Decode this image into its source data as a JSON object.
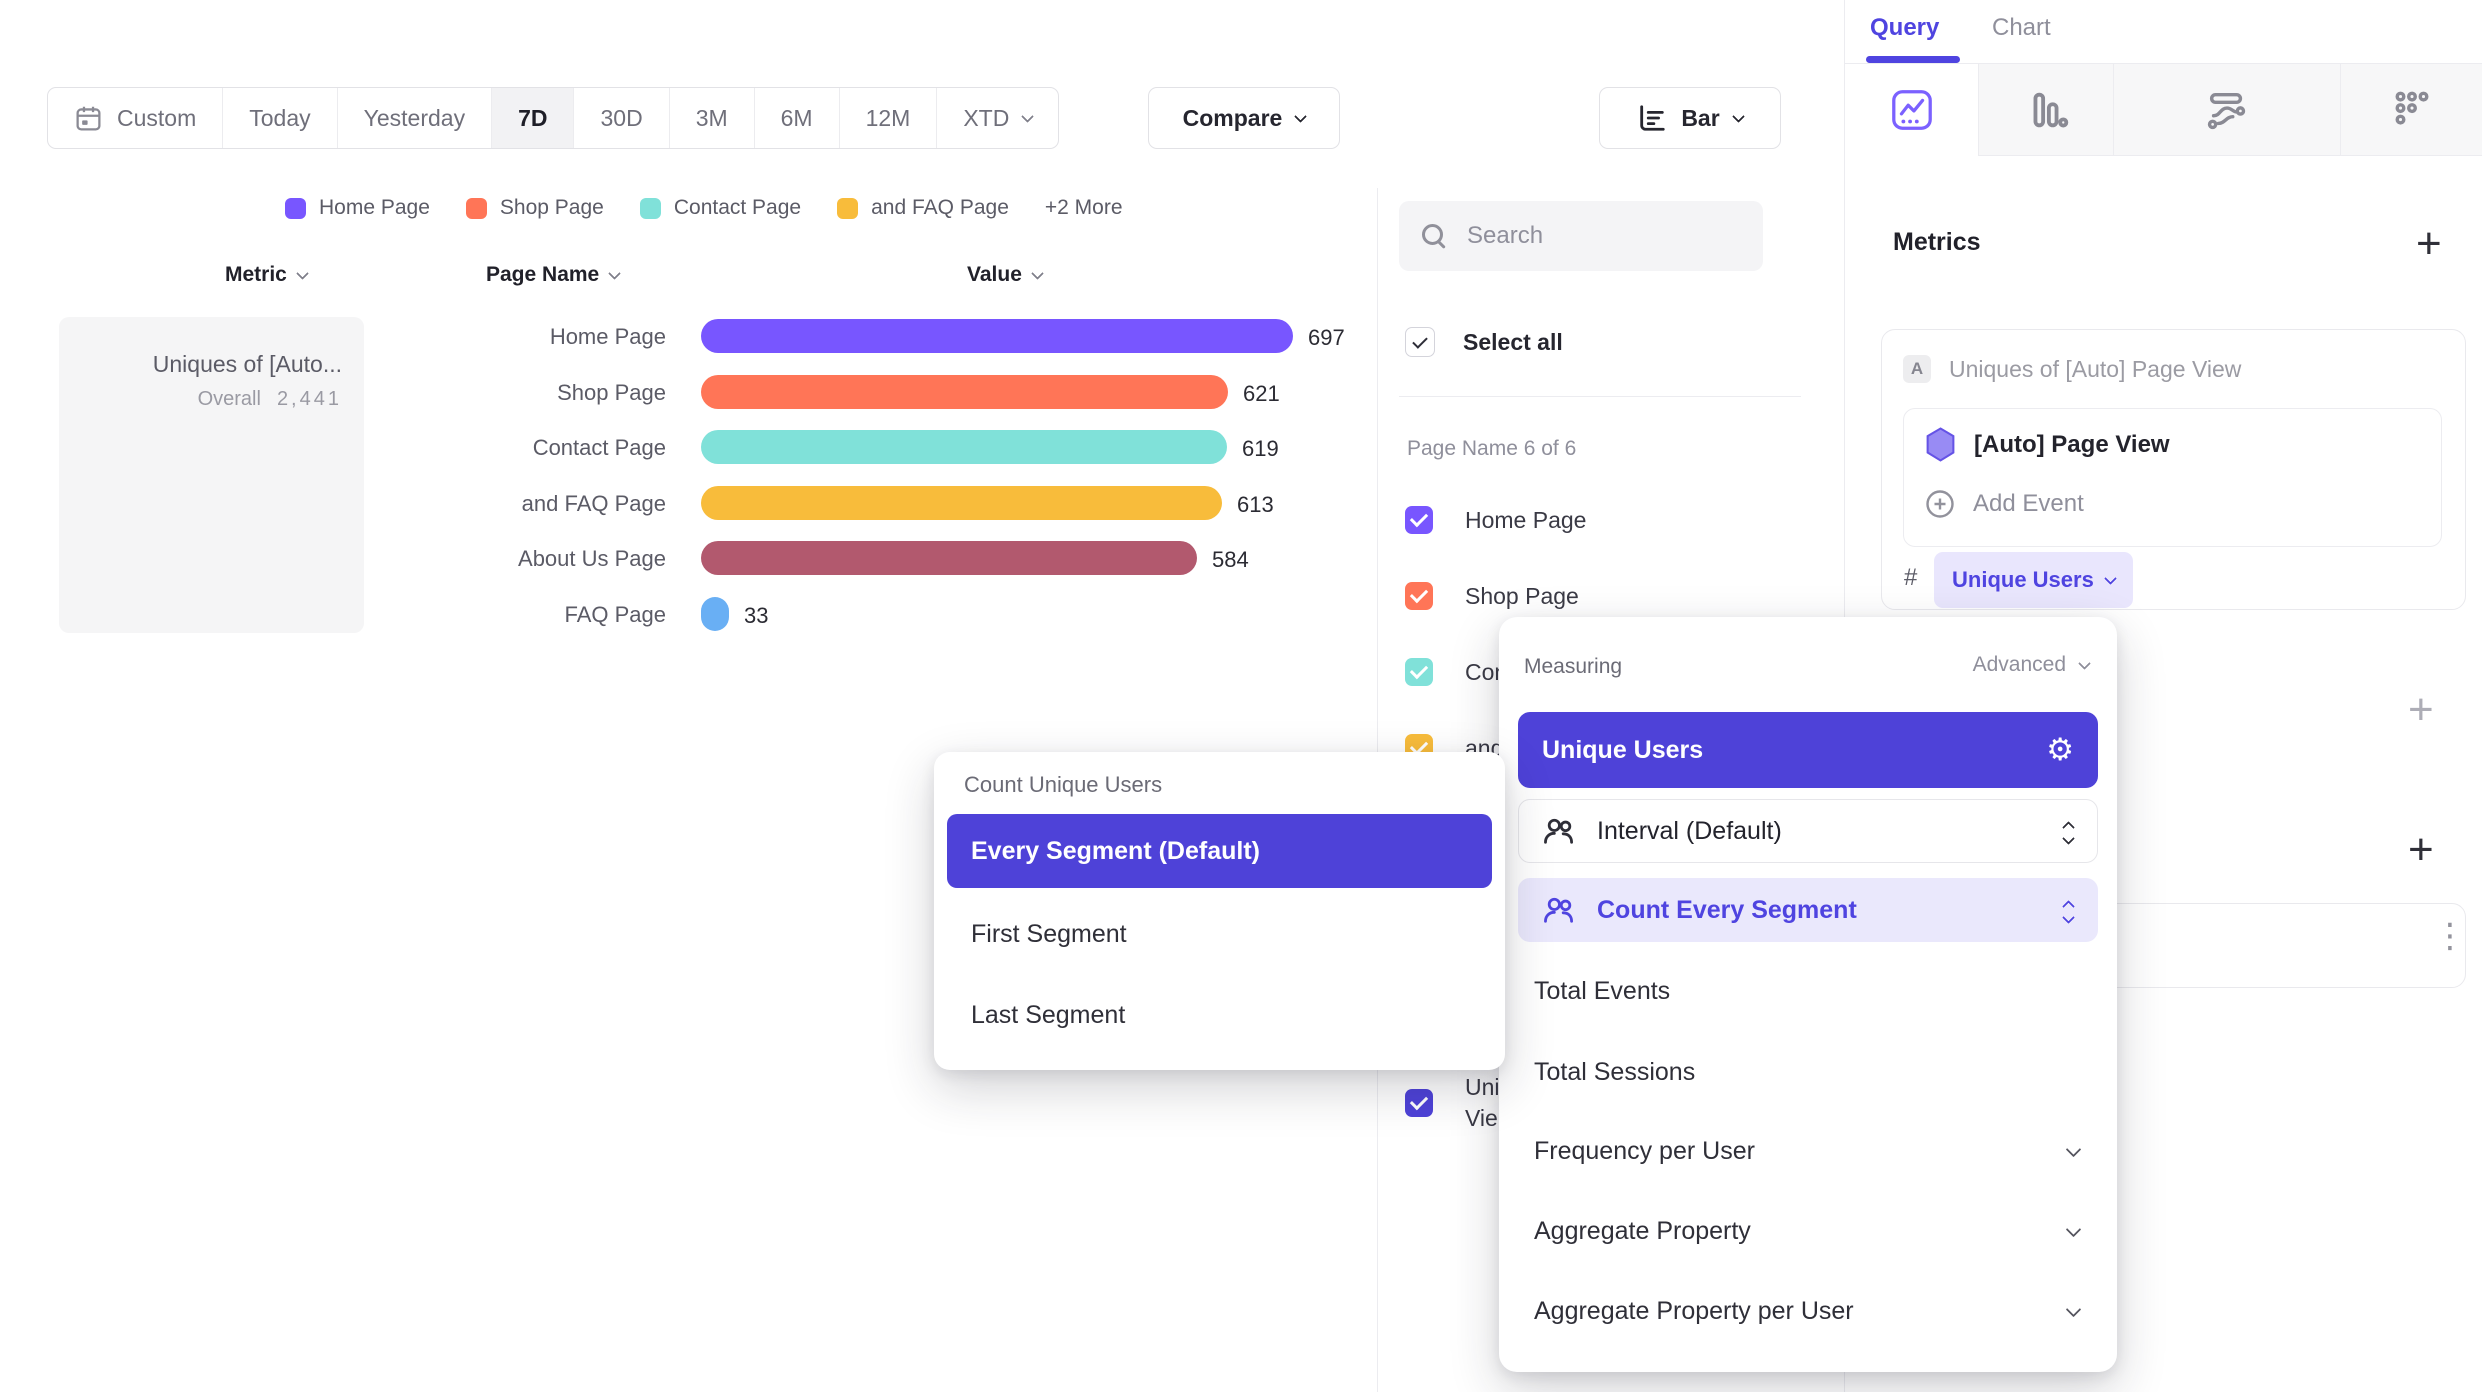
{
  "toolbar": {
    "date_ranges": [
      "Custom",
      "Today",
      "Yesterday",
      "7D",
      "30D",
      "3M",
      "6M",
      "12M",
      "XTD"
    ],
    "active_range": "7D",
    "compare_label": "Compare",
    "chart_type_label": "Bar"
  },
  "legend": {
    "items": [
      {
        "label": "Home Page",
        "color": "#7856ff"
      },
      {
        "label": "Shop Page",
        "color": "#ff7557"
      },
      {
        "label": "Contact Page",
        "color": "#80e1d9"
      },
      {
        "label": "and FAQ Page",
        "color": "#f8bc3b"
      }
    ],
    "more_label": "+2 More"
  },
  "table": {
    "col_metric": "Metric",
    "col_page": "Page Name",
    "col_value": "Value"
  },
  "chart_data": {
    "type": "bar",
    "orientation": "horizontal",
    "metric": {
      "name": "Uniques of [Auto...",
      "overall_label": "Overall",
      "overall_value": "2,441"
    },
    "categories": [
      "Home Page",
      "Shop Page",
      "Contact Page",
      "and FAQ Page",
      "About Us Page",
      "FAQ Page"
    ],
    "values": [
      697,
      621,
      619,
      613,
      584,
      33
    ],
    "colors": [
      "#7856ff",
      "#ff7557",
      "#80e1d9",
      "#f8bc3b",
      "#b2596e",
      "#69aff4"
    ],
    "xlim": [
      0,
      697
    ],
    "grid": false,
    "value_labels": true
  },
  "filter_panel": {
    "search_placeholder": "Search",
    "select_all_label": "Select all",
    "group_label": "Page Name 6 of 6",
    "items": [
      {
        "label": "Home Page",
        "color": "#7856ff",
        "checked": true
      },
      {
        "label": "Shop Page",
        "color": "#ff7557",
        "checked": true
      },
      {
        "label": "Contact Page",
        "color": "#80e1d9",
        "checked": true
      },
      {
        "label": "and FAQ Page",
        "color": "#f8bc3b",
        "checked": true
      },
      {
        "label": "About Us Page",
        "color": "#b2596e",
        "checked": true
      },
      {
        "label": "FAQ Page",
        "color": "#69aff4",
        "checked": true
      }
    ],
    "partial_item": {
      "line1": "Uni",
      "line2": "Vie",
      "color": "#4e42d8",
      "checked": true
    }
  },
  "query_panel": {
    "tab_query": "Query",
    "tab_chart": "Chart",
    "metrics_title": "Metrics",
    "add_metric_label": "+",
    "metric_card": {
      "badge": "A",
      "title": "Uniques of [Auto] Page View",
      "event_name": "[Auto] Page View",
      "add_event_label": "Add Event",
      "count_prefix": "#",
      "count_label": "Unique Users"
    },
    "add_filter_label": "+",
    "add_breakdown_label": "+",
    "kebab_label": "⋮"
  },
  "measuring_popup": {
    "title": "Measuring",
    "advanced_label": "Advanced",
    "selected_option": "Unique Users",
    "interval_option": "Interval (Default)",
    "segment_option": "Count Every Segment",
    "items": [
      "Total Events",
      "Total Sessions",
      "Frequency per User",
      "Aggregate Property",
      "Aggregate Property per User"
    ],
    "expandable_items": [
      "Frequency per User",
      "Aggregate Property",
      "Aggregate Property per User"
    ]
  },
  "segment_popup": {
    "title": "Count Unique Users",
    "selected_option": "Every Segment (Default)",
    "options": [
      "First Segment",
      "Last Segment"
    ]
  },
  "colors": {
    "accent": "#4e42d8",
    "accent_light": "#eae8fc",
    "pill_text": "#4f44e0",
    "bar_purple": "#7856ff",
    "bar_coral": "#ff7557",
    "bar_teal": "#80e1d9",
    "bar_amber": "#f8bc3b",
    "bar_maroon": "#b2596e",
    "bar_blue": "#69aff4"
  }
}
